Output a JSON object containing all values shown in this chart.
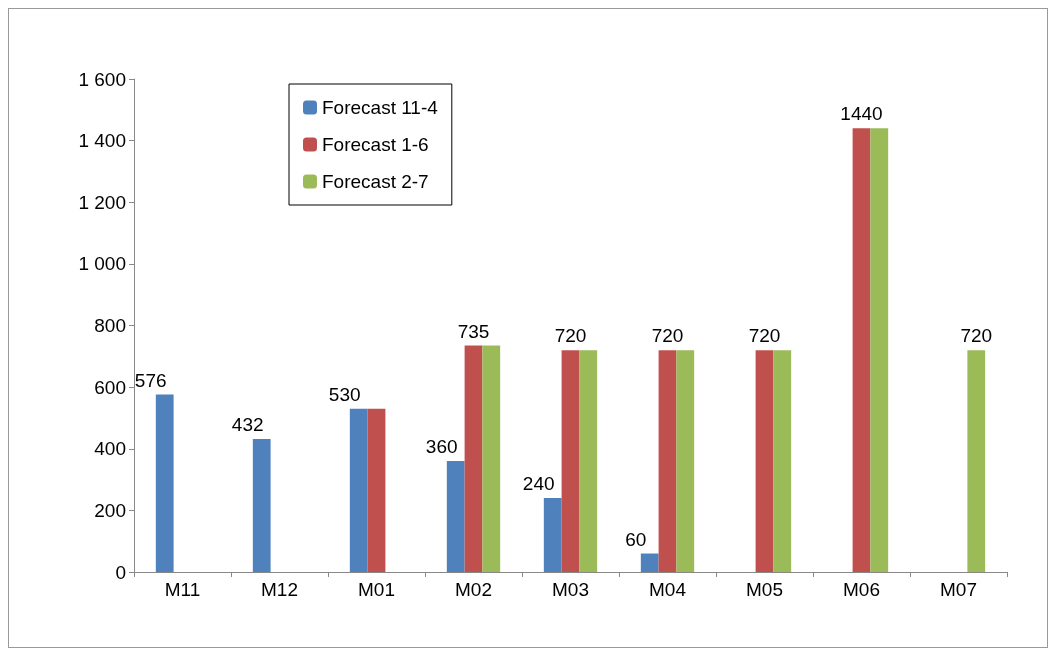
{
  "chart_data": {
    "type": "bar",
    "categories": [
      "M11",
      "M12",
      "M01",
      "M02",
      "M03",
      "M04",
      "M05",
      "M06",
      "M07"
    ],
    "series": [
      {
        "name": "Forecast 11-4",
        "color": "#4f81bd",
        "values": [
          576,
          432,
          530,
          360,
          240,
          60,
          null,
          null,
          null
        ],
        "value_labels": [
          "576",
          "432",
          "530",
          "360",
          "240",
          "60",
          null,
          null,
          null
        ]
      },
      {
        "name": "Forecast 1-6",
        "color": "#c0504d",
        "values": [
          null,
          null,
          530,
          735,
          720,
          720,
          720,
          1440,
          null
        ],
        "value_labels": [
          null,
          null,
          null,
          "735",
          "720",
          "720",
          "720",
          "1440",
          null
        ]
      },
      {
        "name": "Forecast 2-7",
        "color": "#9bbb59",
        "values": [
          null,
          null,
          null,
          735,
          720,
          720,
          720,
          1440,
          720
        ],
        "value_labels": [
          null,
          null,
          null,
          null,
          null,
          null,
          null,
          null,
          "720"
        ]
      }
    ],
    "ylim": [
      0,
      1600
    ],
    "yticks": [
      0,
      200,
      400,
      600,
      800,
      {
        "value": 1000,
        "label": "1 000"
      },
      {
        "value": 1200,
        "label": "1 200"
      },
      {
        "value": 1400,
        "label": "1 400"
      },
      {
        "value": 1600,
        "label": "1 600"
      }
    ],
    "grid": false,
    "legend": "top left"
  }
}
